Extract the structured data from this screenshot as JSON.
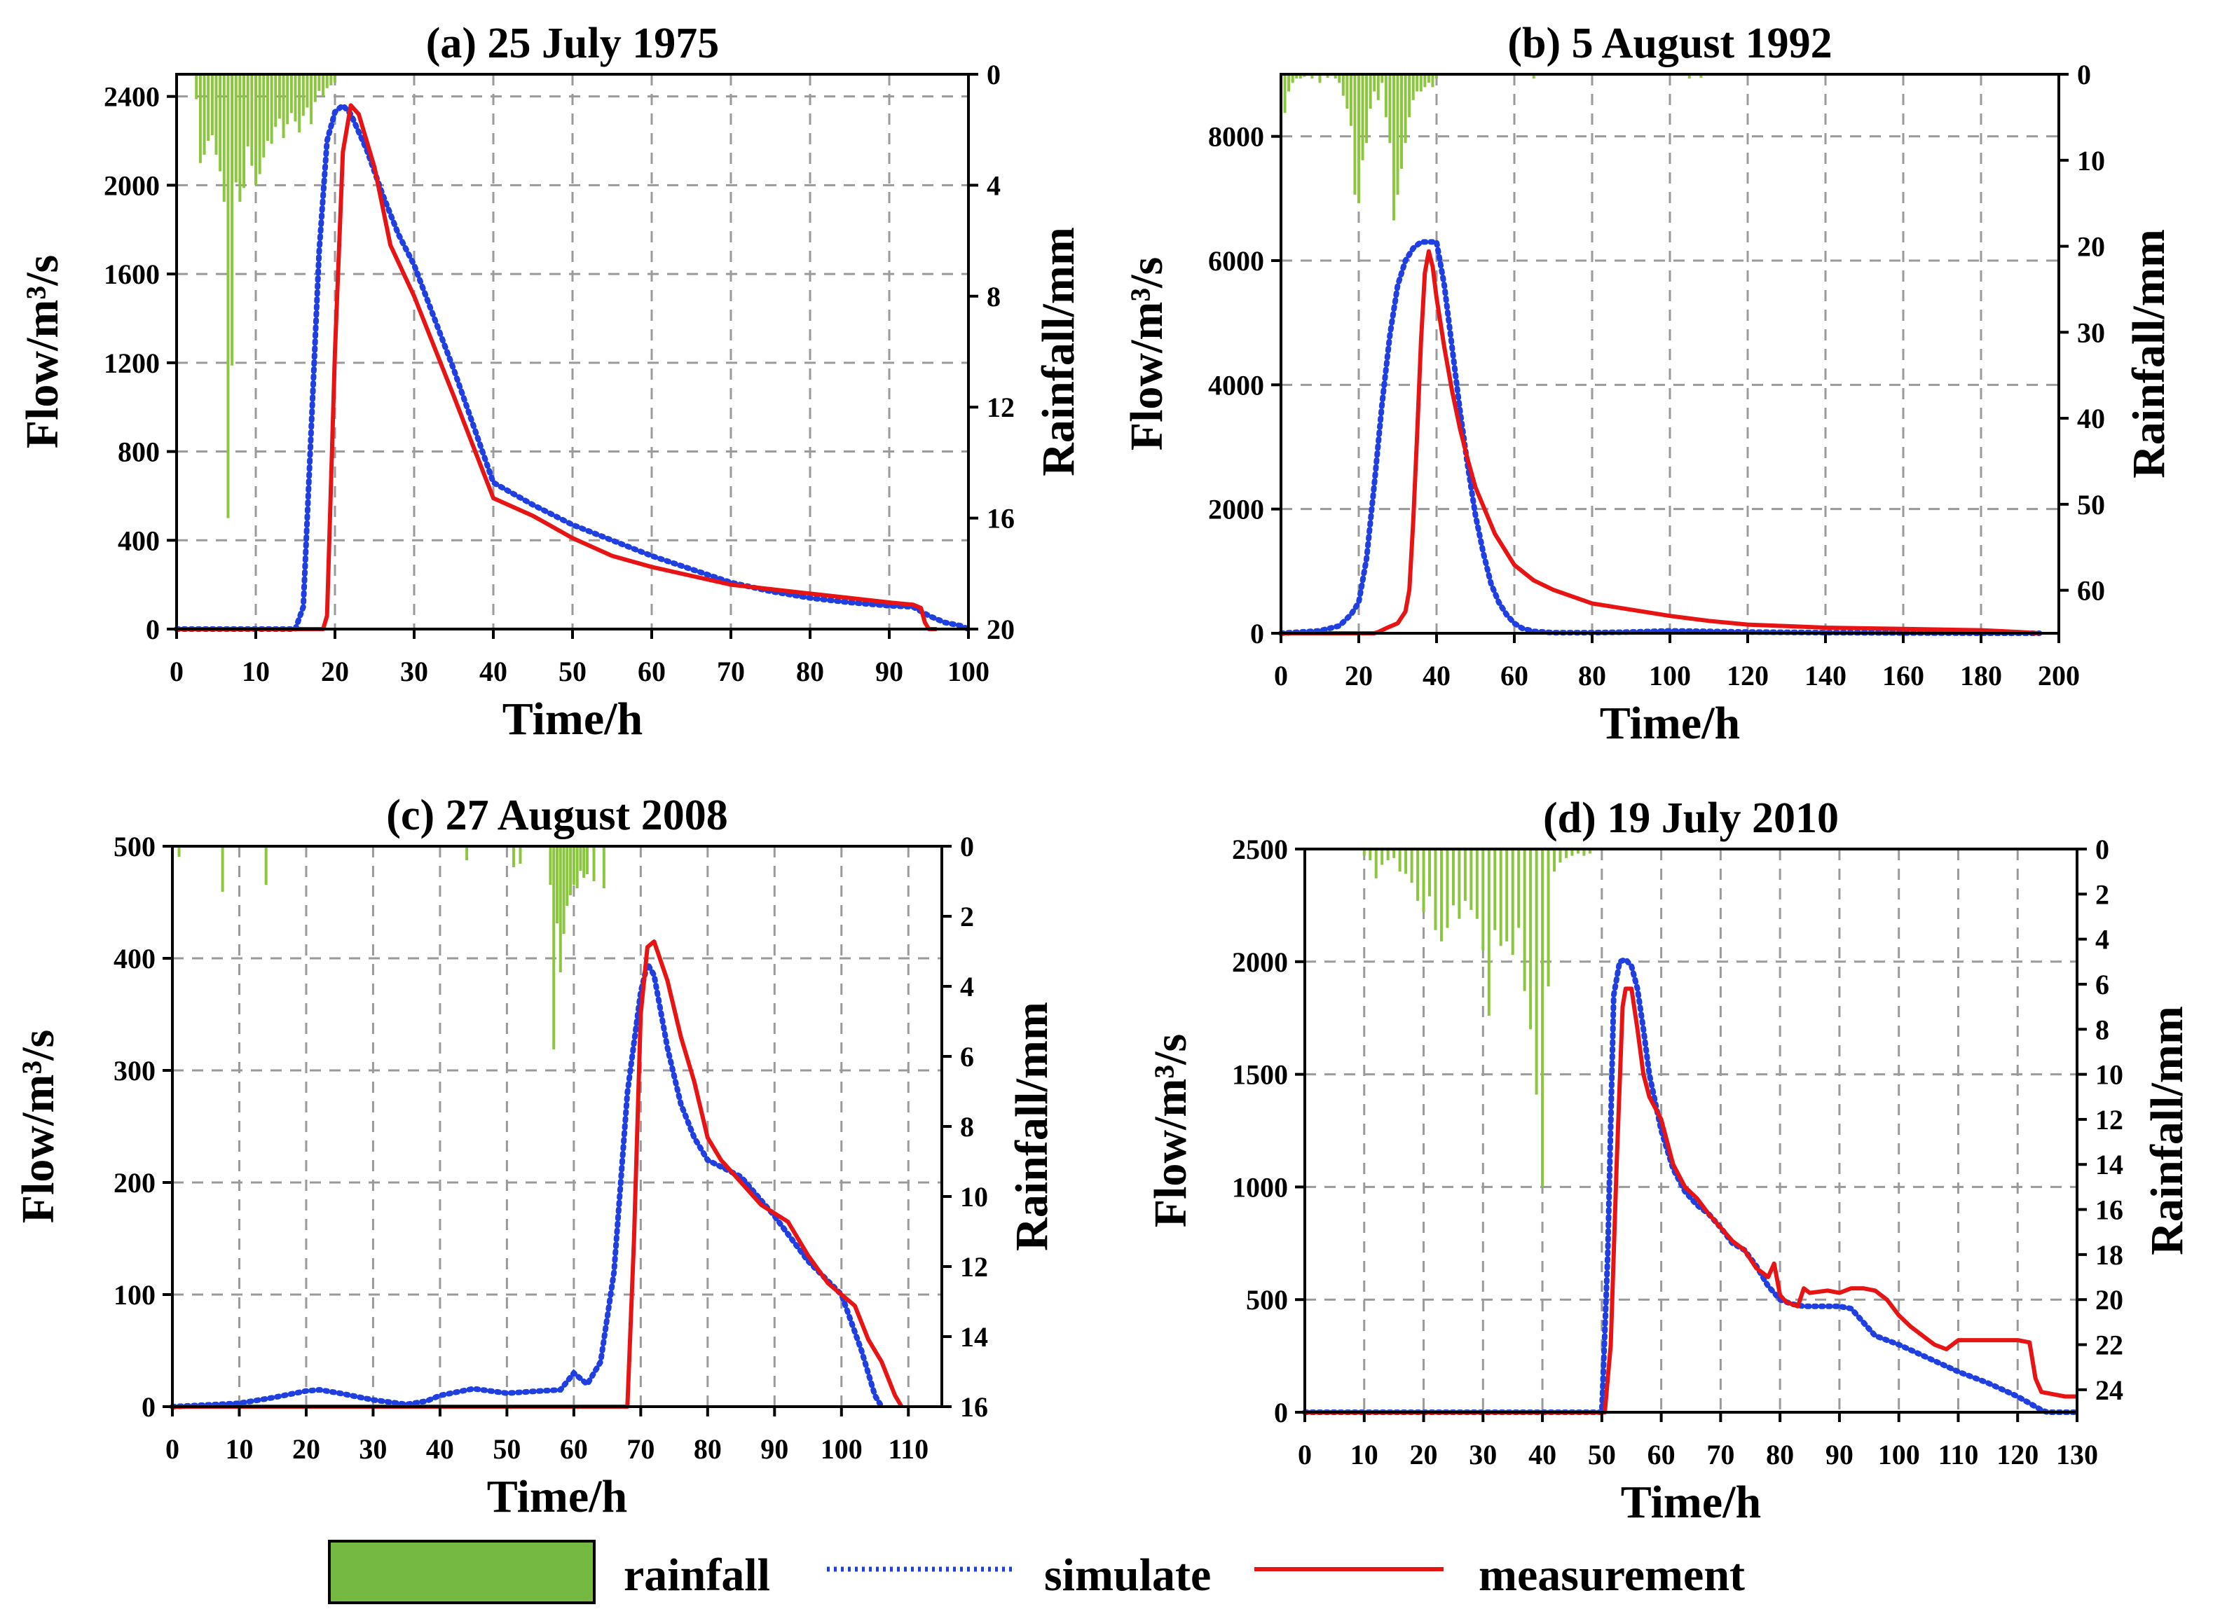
{
  "colors": {
    "rainfall": "#8cc63f",
    "rainfall_legend": "#76b942",
    "simulate": "#1f3fe0",
    "measurement": "#e81414",
    "grid": "#9a9a9a"
  },
  "legend": {
    "rainfall": "rainfall",
    "simulate": "simulate",
    "measurement": "measurement"
  },
  "chart_data": [
    {
      "id": "a",
      "type": "line",
      "title": "(a) 25 July 1975",
      "xlabel": "Time/h",
      "ylabel": "Flow/m³/s",
      "y2label": "Rainfall/mm",
      "xlim": [
        0,
        100
      ],
      "ylim": [
        0,
        2500
      ],
      "y2lim": [
        0,
        20
      ],
      "xticks": [
        0,
        10,
        20,
        30,
        40,
        50,
        60,
        70,
        80,
        90,
        100
      ],
      "yticks": [
        0,
        400,
        800,
        1200,
        1600,
        2000,
        2400
      ],
      "y2ticks": [
        0,
        4,
        8,
        12,
        16,
        20
      ],
      "x_grid": [
        10,
        20,
        30,
        40,
        50,
        60,
        70,
        80,
        90
      ],
      "y_grid": [
        400,
        800,
        1200,
        1600,
        2000,
        2400
      ],
      "series": [
        {
          "name": "simulate",
          "style": "dotted",
          "x": [
            0,
            15,
            16,
            17,
            18,
            19,
            20,
            21,
            22,
            24,
            26,
            28,
            30,
            35,
            40,
            45,
            50,
            55,
            60,
            65,
            70,
            75,
            80,
            85,
            90,
            93,
            95,
            97,
            99,
            100
          ],
          "y": [
            0,
            0,
            100,
            900,
            1700,
            2200,
            2330,
            2360,
            2320,
            2160,
            1960,
            1780,
            1640,
            1170,
            660,
            560,
            470,
            400,
            330,
            270,
            210,
            170,
            140,
            120,
            105,
            100,
            60,
            30,
            15,
            0
          ]
        },
        {
          "name": "measurement",
          "style": "solid",
          "x": [
            0,
            18.5,
            19,
            20,
            21,
            22,
            23,
            25,
            27,
            30,
            35,
            40,
            45,
            50,
            55,
            60,
            65,
            70,
            75,
            80,
            85,
            90,
            93,
            94,
            94.5,
            95,
            96
          ],
          "y": [
            0,
            0,
            60,
            1250,
            2150,
            2360,
            2320,
            2080,
            1730,
            1500,
            1050,
            590,
            510,
            410,
            330,
            280,
            240,
            200,
            180,
            160,
            140,
            120,
            110,
            95,
            30,
            0,
            0
          ]
        }
      ],
      "rainfall": {
        "x": [
          2.5,
          3,
          3.5,
          4,
          4.5,
          5,
          5.5,
          6,
          6.5,
          7,
          7.5,
          8,
          8.5,
          9,
          9.5,
          10,
          10.5,
          11,
          11.5,
          12,
          12.5,
          13,
          13.5,
          14,
          14.5,
          15,
          15.5,
          16,
          16.5,
          17,
          17.5,
          18,
          18.5,
          19,
          19.5,
          20
        ],
        "y": [
          0.9,
          3.2,
          2.9,
          2.4,
          2.2,
          2.9,
          3.5,
          4.6,
          16.0,
          10.5,
          3.9,
          4.6,
          4.1,
          2.6,
          3.3,
          4.0,
          3.6,
          3.0,
          2.4,
          2.5,
          1.9,
          1.6,
          2.3,
          1.8,
          1.4,
          1.7,
          2.1,
          1.5,
          1.2,
          1.8,
          1.0,
          0.6,
          0.8,
          0.5,
          0.4,
          0.3
        ]
      }
    },
    {
      "id": "b",
      "type": "line",
      "title": "(b)  5 August 1992",
      "xlabel": "Time/h",
      "ylabel": "Flow/m³/s",
      "y2label": "Rainfall/mm",
      "xlim": [
        0,
        200
      ],
      "ylim": [
        0,
        9000
      ],
      "y2lim": [
        0,
        65
      ],
      "xticks": [
        0,
        20,
        40,
        60,
        80,
        100,
        120,
        140,
        160,
        180,
        200
      ],
      "yticks": [
        0,
        2000,
        4000,
        6000,
        8000
      ],
      "y2ticks": [
        0,
        10,
        20,
        30,
        40,
        50,
        60
      ],
      "x_grid": [
        20,
        40,
        60,
        80,
        100,
        120,
        140,
        160,
        180
      ],
      "y_grid": [
        2000,
        4000,
        6000,
        8000
      ],
      "series": [
        {
          "name": "simulate",
          "style": "dotted",
          "x": [
            0,
            10,
            15,
            18,
            20,
            22,
            24,
            26,
            28,
            30,
            32,
            34,
            36,
            38,
            40,
            42,
            44,
            46,
            48,
            50,
            52,
            54,
            56,
            58,
            60,
            62,
            65,
            70,
            80,
            90,
            100,
            110,
            120,
            140,
            160,
            180,
            195
          ],
          "y": [
            0,
            40,
            120,
            300,
            500,
            1200,
            2400,
            3700,
            4800,
            5600,
            6000,
            6200,
            6300,
            6300,
            6300,
            5600,
            4600,
            3600,
            2700,
            1900,
            1300,
            800,
            500,
            300,
            160,
            80,
            30,
            10,
            10,
            20,
            40,
            30,
            20,
            10,
            5,
            0,
            0
          ]
        },
        {
          "name": "measurement",
          "style": "solid",
          "x": [
            0,
            24,
            25,
            27,
            30,
            32,
            33,
            34,
            35,
            36,
            37,
            38,
            39,
            40,
            42,
            44,
            46,
            48,
            50,
            55,
            60,
            65,
            70,
            80,
            90,
            100,
            110,
            120,
            140,
            160,
            180,
            190,
            195
          ],
          "y": [
            0,
            0,
            20,
            80,
            160,
            350,
            700,
            1800,
            3200,
            4700,
            5800,
            6150,
            5900,
            5400,
            4600,
            3900,
            3300,
            2800,
            2350,
            1600,
            1100,
            850,
            700,
            480,
            380,
            280,
            200,
            140,
            90,
            70,
            50,
            20,
            0
          ]
        }
      ],
      "rainfall": {
        "x": [
          1,
          2,
          3,
          4,
          5,
          6,
          8,
          10,
          12,
          14,
          15,
          16,
          17,
          18,
          19,
          20,
          21,
          22,
          23,
          24,
          25,
          26,
          27,
          28,
          29,
          30,
          31,
          32,
          33,
          34,
          35,
          36,
          37,
          38,
          39,
          40,
          65,
          105,
          108
        ],
        "y": [
          4.5,
          2.0,
          1.0,
          0.5,
          0.5,
          0.3,
          0.5,
          1.0,
          0.4,
          0.5,
          1.0,
          2.5,
          4.0,
          6.0,
          14.0,
          15.0,
          10.0,
          8.0,
          4.0,
          2.0,
          3.0,
          1.0,
          5.0,
          8.0,
          17.0,
          14.0,
          11.0,
          8.0,
          5.0,
          3.0,
          2.0,
          2.0,
          1.5,
          1.0,
          1.5,
          0.5,
          0.5,
          0.5,
          0.4
        ]
      }
    },
    {
      "id": "c",
      "type": "line",
      "title": "(c) 27 August 2008",
      "xlabel": "Time/h",
      "ylabel": "Flow/m³/s",
      "y2label": "Rainfall/mm",
      "xlim": [
        0,
        115
      ],
      "ylim": [
        0,
        500
      ],
      "y2lim": [
        0,
        16
      ],
      "xticks": [
        0,
        10,
        20,
        30,
        40,
        50,
        60,
        70,
        80,
        90,
        100,
        110
      ],
      "yticks": [
        0,
        100,
        200,
        300,
        400,
        500
      ],
      "y2ticks": [
        0,
        2,
        4,
        6,
        8,
        10,
        12,
        14,
        16
      ],
      "x_grid": [
        10,
        20,
        30,
        40,
        50,
        60,
        70,
        80,
        90,
        100,
        110
      ],
      "y_grid": [
        100,
        200,
        300,
        400
      ],
      "series": [
        {
          "name": "simulate",
          "style": "dotted",
          "x": [
            0,
            10,
            15,
            20,
            22,
            25,
            30,
            35,
            38,
            40,
            45,
            50,
            55,
            58,
            60,
            62,
            64,
            66,
            68,
            70,
            71,
            72,
            74,
            76,
            78,
            80,
            85,
            90,
            95,
            100,
            103,
            105,
            106
          ],
          "y": [
            0,
            3,
            8,
            14,
            15,
            12,
            6,
            2,
            5,
            10,
            16,
            12,
            14,
            15,
            30,
            20,
            40,
            120,
            280,
            370,
            395,
            385,
            320,
            270,
            240,
            220,
            205,
            170,
            130,
            100,
            50,
            10,
            0
          ]
        },
        {
          "name": "measurement",
          "style": "solid",
          "x": [
            0,
            68,
            69,
            70,
            71,
            72,
            74,
            76,
            78,
            80,
            82,
            85,
            88,
            92,
            95,
            98,
            100,
            102,
            104,
            106,
            108,
            109
          ],
          "y": [
            0,
            0,
            150,
            350,
            410,
            415,
            380,
            330,
            290,
            240,
            220,
            200,
            180,
            165,
            135,
            110,
            100,
            90,
            60,
            40,
            10,
            0
          ]
        }
      ],
      "rainfall": {
        "x": [
          1,
          7.5,
          14,
          44,
          51,
          52,
          56.5,
          57,
          57.5,
          58,
          58.5,
          59,
          59.5,
          60,
          60.5,
          61,
          61.5,
          62,
          63,
          64.5
        ],
        "y": [
          0.3,
          1.3,
          1.1,
          0.4,
          0.6,
          0.5,
          1.1,
          5.8,
          2.2,
          3.6,
          2.5,
          1.7,
          1.4,
          1.1,
          1.2,
          0.7,
          0.9,
          0.8,
          1.0,
          1.2
        ]
      }
    },
    {
      "id": "d",
      "type": "line",
      "title": "(d) 19 July 2010",
      "xlabel": "Time/h",
      "ylabel": "Flow/m³/s",
      "y2label": "Rainfall/mm",
      "xlim": [
        0,
        130
      ],
      "ylim": [
        0,
        2500
      ],
      "y2lim": [
        0,
        25
      ],
      "xticks": [
        0,
        10,
        20,
        30,
        40,
        50,
        60,
        70,
        80,
        90,
        100,
        110,
        120,
        130
      ],
      "yticks": [
        0,
        500,
        1000,
        1500,
        2000,
        2500
      ],
      "y2ticks": [
        0,
        2,
        4,
        6,
        8,
        10,
        12,
        14,
        16,
        18,
        20,
        22,
        24
      ],
      "x_grid": [
        10,
        20,
        30,
        40,
        50,
        60,
        70,
        80,
        90,
        100,
        110,
        120
      ],
      "y_grid": [
        500,
        1000,
        1500,
        2000
      ],
      "series": [
        {
          "name": "simulate",
          "style": "dotted",
          "x": [
            0,
            50,
            51,
            52,
            53,
            54,
            55,
            56,
            57,
            58,
            60,
            62,
            64,
            66,
            68,
            70,
            72,
            74,
            76,
            78,
            80,
            82,
            84,
            86,
            88,
            90,
            92,
            94,
            96,
            100,
            105,
            110,
            115,
            120,
            122,
            124,
            125,
            130
          ],
          "y": [
            0,
            0,
            700,
            1850,
            2000,
            2010,
            1980,
            1880,
            1700,
            1500,
            1250,
            1080,
            980,
            920,
            880,
            820,
            750,
            720,
            650,
            560,
            500,
            480,
            470,
            470,
            470,
            470,
            460,
            400,
            340,
            300,
            240,
            180,
            130,
            70,
            40,
            10,
            0,
            0
          ]
        },
        {
          "name": "measurement",
          "style": "solid",
          "x": [
            0,
            50.5,
            51.5,
            52.5,
            53.5,
            54,
            55,
            56,
            57,
            58,
            60,
            62,
            64,
            66,
            68,
            70,
            72,
            74,
            76,
            78,
            79,
            80,
            81,
            83,
            84,
            85,
            88,
            90,
            92,
            94,
            96,
            98,
            100,
            102,
            104,
            106,
            108,
            110,
            115,
            120,
            122,
            123,
            124,
            126,
            128,
            130
          ],
          "y": [
            0,
            0,
            300,
            1100,
            1800,
            1880,
            1880,
            1700,
            1500,
            1400,
            1300,
            1100,
            1000,
            950,
            880,
            820,
            760,
            720,
            640,
            600,
            660,
            520,
            490,
            470,
            550,
            530,
            540,
            530,
            550,
            550,
            540,
            500,
            430,
            380,
            340,
            300,
            280,
            320,
            320,
            320,
            310,
            150,
            90,
            80,
            70,
            70
          ]
        }
      ],
      "rainfall": {
        "x": [
          10,
          11,
          12,
          13,
          14,
          15,
          16,
          17,
          18,
          19,
          20,
          21,
          22,
          23,
          24,
          25,
          26,
          27,
          28,
          29,
          30,
          31,
          32,
          33,
          34,
          35,
          36,
          37,
          38,
          39,
          40,
          41,
          42,
          43,
          44,
          45,
          46,
          47,
          48
        ],
        "y": [
          0.3,
          0.5,
          1.3,
          0.7,
          0.5,
          0.4,
          1.0,
          1.1,
          1.5,
          2.3,
          2.8,
          2.1,
          3.6,
          4.1,
          3.5,
          2.5,
          3.1,
          2.3,
          2.7,
          3.1,
          4.5,
          7.4,
          3.6,
          4.3,
          4.1,
          4.7,
          3.5,
          6.3,
          8.0,
          10.9,
          15.0,
          6.1,
          1.0,
          0.6,
          0.4,
          0.3,
          0.2,
          0.3,
          0.2
        ]
      }
    }
  ]
}
